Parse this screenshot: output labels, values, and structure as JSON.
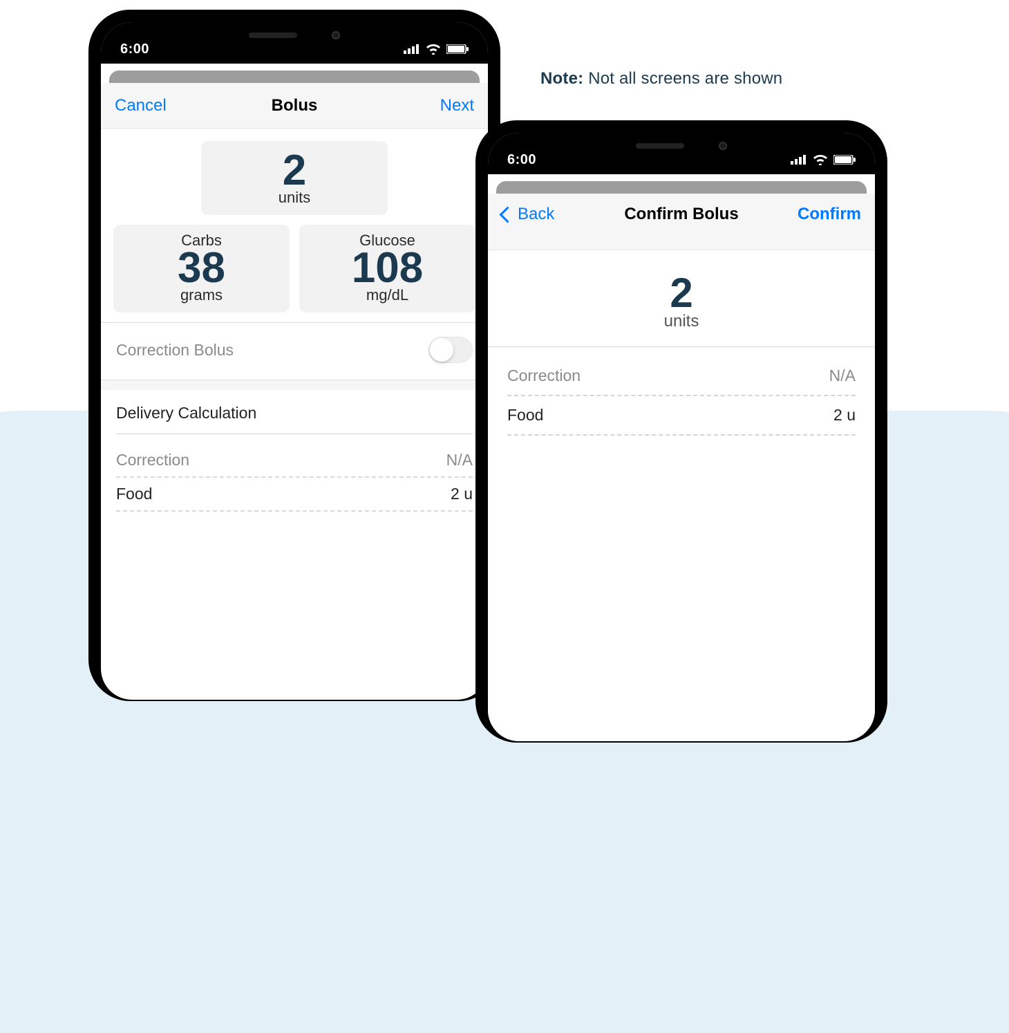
{
  "note_bold": "Note:",
  "note_rest": " Not all screens are shown",
  "colors": {
    "accent": "#007aff",
    "dark_text": "#1b3a4f",
    "muted": "#8a8a8a",
    "bg_tint": "#e4f0f7"
  },
  "status": {
    "time": "6:00"
  },
  "phone1": {
    "nav_left": "Cancel",
    "nav_title": "Bolus",
    "nav_right": "Next",
    "units_value": "2",
    "units_label": "units",
    "carbs_label": "Carbs",
    "carbs_value": "38",
    "carbs_unit": "grams",
    "glucose_label": "Glucose",
    "glucose_value": "108",
    "glucose_unit": "mg/dL",
    "correction_bolus_label": "Correction Bolus",
    "correction_bolus_on": false,
    "calc_title": "Delivery Calculation",
    "calc_rows": [
      {
        "label": "Correction",
        "value": "N/A",
        "muted": true
      },
      {
        "label": "Food",
        "value": "2 u",
        "muted": false
      }
    ]
  },
  "phone2": {
    "nav_left": "Back",
    "nav_title": "Confirm Bolus",
    "nav_right": "Confirm",
    "units_value": "2",
    "units_label": "units",
    "rows": [
      {
        "label": "Correction",
        "value": "N/A",
        "muted": true
      },
      {
        "label": "Food",
        "value": "2 u",
        "muted": false
      }
    ]
  }
}
